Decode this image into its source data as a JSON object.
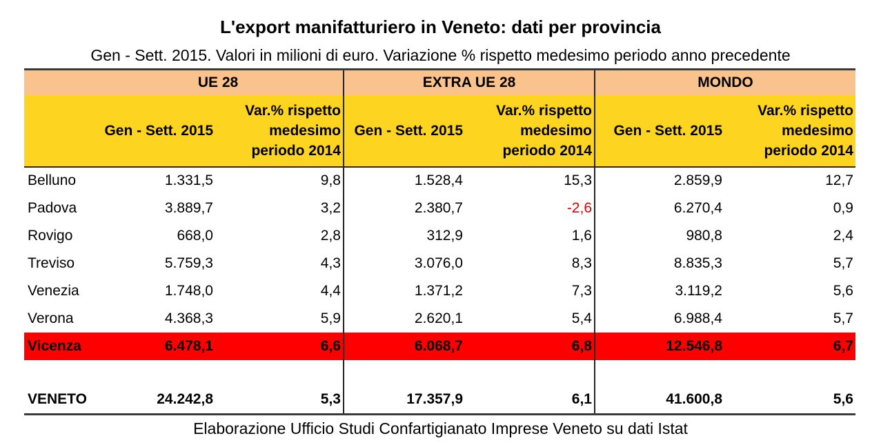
{
  "title": "L'export manifatturiero in Veneto: dati per provincia",
  "subtitle": "Gen - Sett. 2015. Valori in milioni di euro. Variazione % rispetto medesimo periodo anno precedente",
  "footer": "Elaborazione Ufficio Studi Confartigianato Imprese Veneto su dati Istat",
  "groups": [
    "UE 28",
    "EXTRA UE 28",
    "MONDO"
  ],
  "period_label": "Gen - Sett. 2015",
  "var_label": [
    "Var.% rispetto",
    "medesimo",
    "periodo 2014"
  ],
  "rows": [
    {
      "name": "Belluno",
      "v": [
        "1.331,5",
        "9,8",
        "1.528,4",
        "15,3",
        "2.859,9",
        "12,7"
      ]
    },
    {
      "name": "Padova",
      "v": [
        "3.889,7",
        "3,2",
        "2.380,7",
        "-2,6",
        "6.270,4",
        "0,9"
      ]
    },
    {
      "name": "Rovigo",
      "v": [
        "668,0",
        "2,8",
        "312,9",
        "1,6",
        "980,8",
        "2,4"
      ]
    },
    {
      "name": "Treviso",
      "v": [
        "5.759,3",
        "4,3",
        "3.076,0",
        "8,3",
        "8.835,3",
        "5,7"
      ]
    },
    {
      "name": "Venezia",
      "v": [
        "1.748,0",
        "4,4",
        "1.371,2",
        "7,3",
        "3.119,2",
        "5,6"
      ]
    },
    {
      "name": "Verona",
      "v": [
        "4.368,3",
        "5,9",
        "2.620,1",
        "5,4",
        "6.988,4",
        "5,7"
      ]
    },
    {
      "name": "Vicenza",
      "v": [
        "6.478,1",
        "6,6",
        "6.068,7",
        "6,8",
        "12.546,8",
        "6,7"
      ]
    }
  ],
  "total": {
    "name": "VENETO",
    "v": [
      "24.242,8",
      "5,3",
      "17.357,9",
      "6,1",
      "41.600,8",
      "5,6"
    ]
  },
  "colors": {
    "group_header": "#fac38d",
    "sub_header": "#fdd520",
    "highlight_row": "#ff0000",
    "negative": "#e00000"
  }
}
